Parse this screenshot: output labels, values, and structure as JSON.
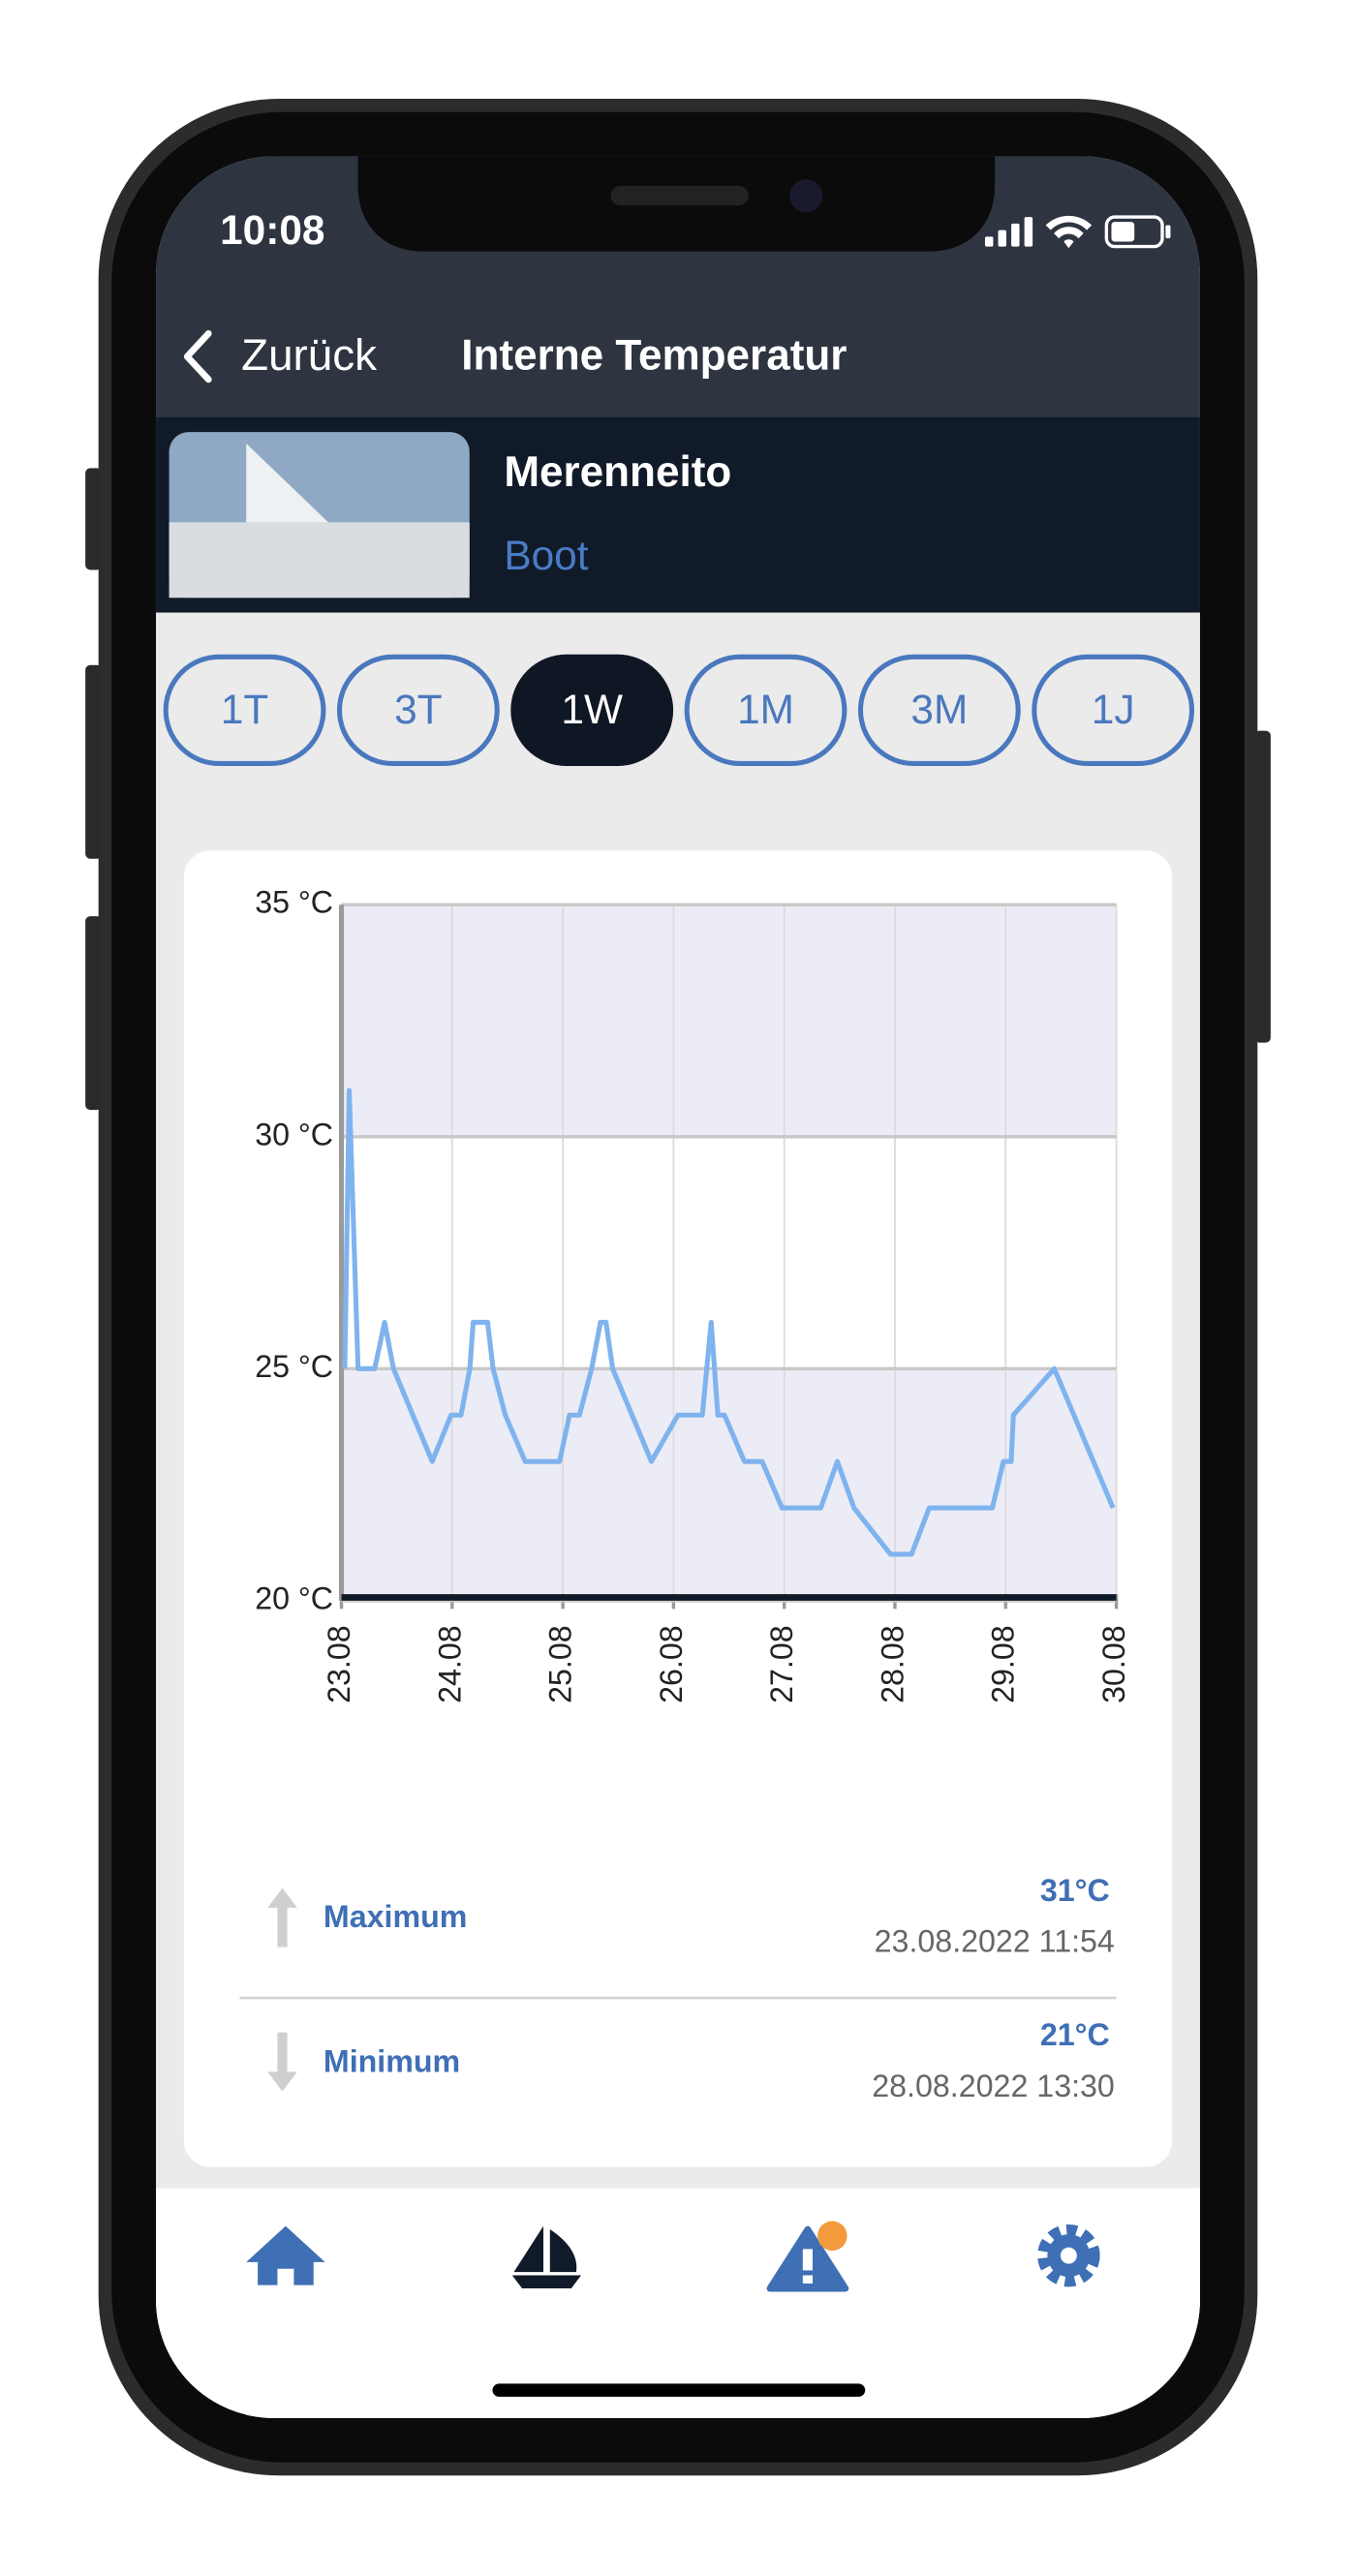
{
  "status_bar": {
    "time": "10:08"
  },
  "nav": {
    "back": "Zurück",
    "title": "Interne Temperatur"
  },
  "boat": {
    "name": "Merenneito",
    "type": "Boot"
  },
  "ranges": {
    "labels": [
      "1T",
      "3T",
      "1W",
      "1M",
      "3M",
      "1J"
    ],
    "active": 2
  },
  "chart_data": {
    "type": "line",
    "x": [
      0.03,
      0.07,
      0.15,
      0.3,
      0.39,
      0.47,
      0.82,
      0.99,
      1.08,
      1.16,
      1.19,
      1.32,
      1.37,
      1.48,
      1.66,
      1.97,
      2.06,
      2.15,
      2.26,
      2.34,
      2.39,
      2.45,
      2.8,
      3.04,
      3.26,
      3.34,
      3.4,
      3.46,
      3.64,
      3.8,
      3.98,
      4.33,
      4.48,
      4.63,
      4.96,
      5.15,
      5.31,
      5.88,
      5.98,
      6.05,
      6.07,
      6.44,
      6.97
    ],
    "series": [
      {
        "color": "#7fb3ee",
        "values": [
          25,
          31,
          25,
          25,
          26,
          25,
          23,
          24,
          24,
          25,
          26,
          26,
          25,
          24,
          23,
          23,
          24,
          24,
          25,
          26,
          26,
          25,
          23,
          24,
          24,
          26,
          24,
          24,
          23,
          23,
          22,
          22,
          23,
          22,
          21,
          21,
          22,
          22,
          23,
          23,
          24,
          25,
          22
        ]
      }
    ],
    "xlim": [
      0,
      7
    ],
    "xticks": [
      {
        "value": 0,
        "label": "23.08"
      },
      {
        "value": 1,
        "label": "24.08"
      },
      {
        "value": 2,
        "label": "25.08"
      },
      {
        "value": 3,
        "label": "26.08"
      },
      {
        "value": 4,
        "label": "27.08"
      },
      {
        "value": 5,
        "label": "28.08"
      },
      {
        "value": 6,
        "label": "29.08"
      },
      {
        "value": 7,
        "label": "30.08"
      }
    ],
    "ylim": [
      20,
      35
    ],
    "yticks": [
      {
        "value": 20,
        "label": "20 °C"
      },
      {
        "value": 25,
        "label": "25 °C"
      },
      {
        "value": 30,
        "label": "30 °C"
      },
      {
        "value": 35,
        "label": "35 °C"
      }
    ],
    "shaded_ranges": [
      [
        20,
        25
      ],
      [
        30,
        35
      ]
    ],
    "shade_color": "#ececf6",
    "grid": true
  },
  "stats": [
    {
      "label": "Maximum",
      "value": "31°C",
      "time": "23.08.2022 11:54"
    },
    {
      "label": "Minimum",
      "value": "21°C",
      "time": "28.08.2022 13:30"
    }
  ]
}
